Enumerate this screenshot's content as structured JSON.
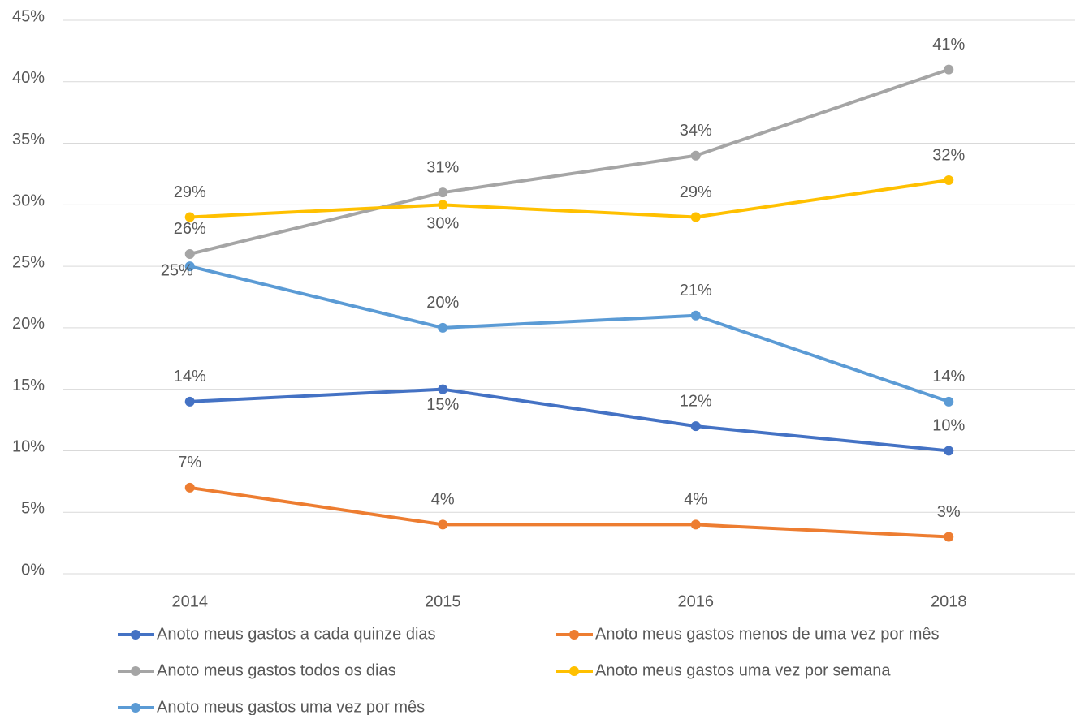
{
  "chart_data": {
    "type": "line",
    "categories": [
      "2014",
      "2015",
      "2016",
      "2018"
    ],
    "series": [
      {
        "name": "Anoto meus gastos a cada quinze dias",
        "color": "#4472c4",
        "values": [
          14,
          15,
          12,
          10
        ],
        "value_labels": [
          "14%",
          "15%",
          "12%",
          "10%"
        ]
      },
      {
        "name": "Anoto meus gastos menos de uma vez por mês",
        "color": "#ed7d31",
        "values": [
          7,
          4,
          4,
          3
        ],
        "value_labels": [
          "7%",
          "4%",
          "4%",
          "3%"
        ]
      },
      {
        "name": "Anoto meus gastos todos os dias",
        "color": "#a5a5a5",
        "values": [
          26,
          31,
          34,
          41
        ],
        "value_labels": [
          "26%",
          "31%",
          "34%",
          "41%"
        ]
      },
      {
        "name": "Anoto meus gastos uma vez por semana",
        "color": "#ffc000",
        "values": [
          29,
          30,
          29,
          32
        ],
        "value_labels": [
          "29%",
          "30%",
          "29%",
          "32%"
        ]
      },
      {
        "name": "Anoto meus gastos uma vez por mês",
        "color": "#5b9bd5",
        "values": [
          25,
          20,
          21,
          14
        ],
        "value_labels": [
          "25%",
          "20%",
          "21%",
          "14%"
        ]
      }
    ],
    "ylim": [
      0,
      45
    ],
    "yticks": [
      {
        "value": 0,
        "label": "0%"
      },
      {
        "value": 5,
        "label": "5%"
      },
      {
        "value": 10,
        "label": "10%"
      },
      {
        "value": 15,
        "label": "15%"
      },
      {
        "value": 20,
        "label": "20%"
      },
      {
        "value": 25,
        "label": "25%"
      },
      {
        "value": 30,
        "label": "30%"
      },
      {
        "value": 35,
        "label": "35%"
      },
      {
        "value": 40,
        "label": "40%"
      },
      {
        "value": 45,
        "label": "45%"
      }
    ],
    "grid": true
  }
}
